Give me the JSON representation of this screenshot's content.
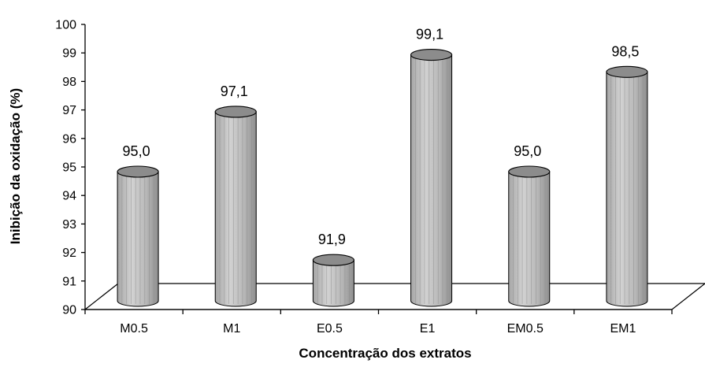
{
  "chart_data": {
    "type": "bar",
    "categories": [
      "M0.5",
      "M1",
      "E0.5",
      "E1",
      "EM0.5",
      "EM1"
    ],
    "values": [
      95.0,
      97.1,
      91.9,
      99.1,
      95.0,
      98.5
    ],
    "data_labels": [
      "95,0",
      "97,1",
      "91,9",
      "99,1",
      "95,0",
      "98,5"
    ],
    "title": "",
    "xlabel": "Concentração dos extratos",
    "ylabel": "Inibição da oxidação (%)",
    "ylim": [
      90,
      100
    ],
    "yticks": [
      "90",
      "91",
      "92",
      "93",
      "94",
      "95",
      "96",
      "97",
      "98",
      "99",
      "100"
    ],
    "grid": false,
    "legend": "none",
    "style": "3d-cylinder",
    "bar_color": "#b4b4b4",
    "bar_top_color": "#8c8c8c"
  }
}
